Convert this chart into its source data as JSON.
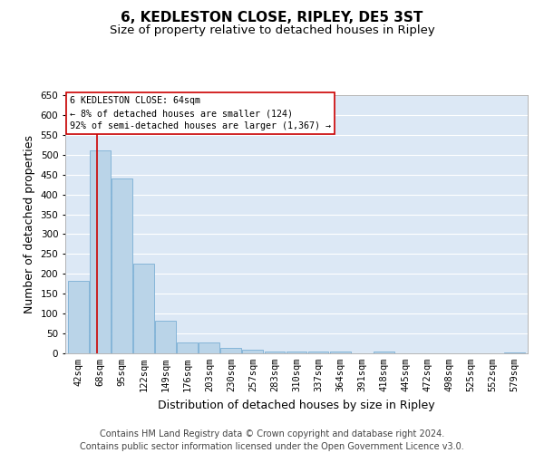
{
  "title": "6, KEDLESTON CLOSE, RIPLEY, DE5 3ST",
  "subtitle": "Size of property relative to detached houses in Ripley",
  "xlabel": "Distribution of detached houses by size in Ripley",
  "ylabel": "Number of detached properties",
  "footer_line1": "Contains HM Land Registry data © Crown copyright and database right 2024.",
  "footer_line2": "Contains public sector information licensed under the Open Government Licence v3.0.",
  "categories": [
    "42sqm",
    "68sqm",
    "95sqm",
    "122sqm",
    "149sqm",
    "176sqm",
    "203sqm",
    "230sqm",
    "257sqm",
    "283sqm",
    "310sqm",
    "337sqm",
    "364sqm",
    "391sqm",
    "418sqm",
    "445sqm",
    "472sqm",
    "498sqm",
    "525sqm",
    "552sqm",
    "579sqm"
  ],
  "values": [
    183,
    510,
    440,
    225,
    83,
    28,
    28,
    13,
    8,
    5,
    5,
    5,
    5,
    0,
    4,
    0,
    0,
    0,
    0,
    0,
    3
  ],
  "bar_color": "#bad4e8",
  "bar_edge_color": "#7bafd4",
  "background_color": "#dce8f5",
  "ylim": [
    0,
    650
  ],
  "yticks": [
    0,
    50,
    100,
    150,
    200,
    250,
    300,
    350,
    400,
    450,
    500,
    550,
    600,
    650
  ],
  "marker_color": "#cc0000",
  "marker_label": "6 KEDLESTON CLOSE: 64sqm",
  "marker_line1": "← 8% of detached houses are smaller (124)",
  "marker_line2": "92% of semi-detached houses are larger (1,367) →",
  "title_fontsize": 11,
  "subtitle_fontsize": 9.5,
  "axis_label_fontsize": 9,
  "tick_fontsize": 7.5,
  "footer_fontsize": 7
}
